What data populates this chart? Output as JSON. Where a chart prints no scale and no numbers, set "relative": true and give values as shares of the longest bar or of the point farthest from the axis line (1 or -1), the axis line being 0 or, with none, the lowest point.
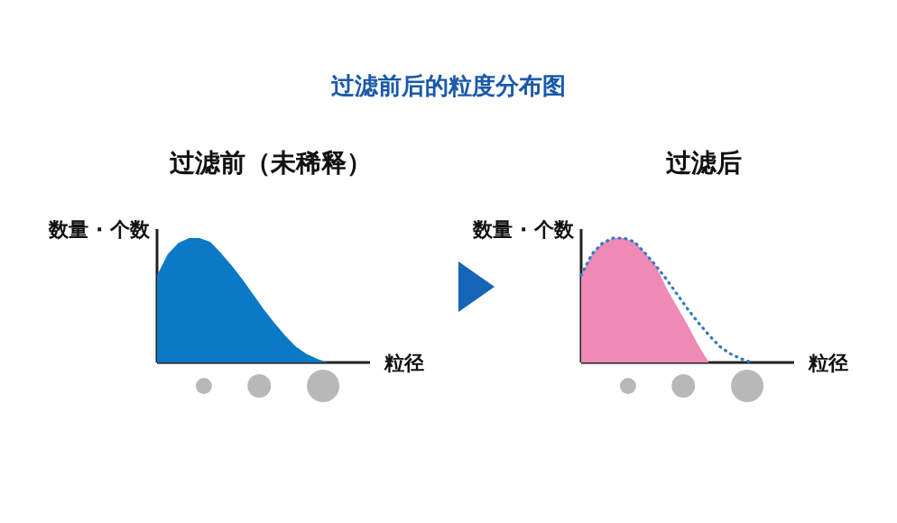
{
  "chart_data": [
    {
      "type": "area",
      "relative": true,
      "title": "过滤前（未稀释）",
      "xlabel": "粒径",
      "ylabel": "数量 · 个数",
      "annotations": [
        "过滤前后的粒度分布图"
      ],
      "categories": [
        null,
        null,
        null,
        null,
        null,
        null,
        null,
        null,
        null,
        null,
        null,
        null,
        null,
        null,
        null,
        null,
        null,
        null,
        null,
        null,
        null
      ],
      "series": [
        {
          "color": "#0a7ac6",
          "values": [
            0.7,
            0.87,
            0.96,
            1,
            1,
            0.97,
            0.88,
            0.78,
            0.67,
            0.55,
            0.43,
            0.32,
            0.22,
            0.13,
            0.07,
            0.03,
            0,
            0,
            0,
            0,
            0
          ]
        }
      ]
    },
    {
      "type": "area",
      "relative": true,
      "title": "过滤后",
      "xlabel": "粒径",
      "ylabel": "数量 · 个数",
      "categories": [
        null,
        null,
        null,
        null,
        null,
        null,
        null,
        null,
        null,
        null,
        null,
        null,
        null,
        null,
        null,
        null,
        null,
        null,
        null,
        null,
        null
      ],
      "series": [
        {
          "color": "#ee8ab4",
          "values": [
            0.7,
            0.87,
            0.96,
            1,
            1,
            0.97,
            0.88,
            0.78,
            0.6,
            0.45,
            0.3,
            0.14,
            0,
            0,
            0,
            0,
            0,
            0,
            0,
            0,
            0
          ]
        },
        {
          "type": "line",
          "line_style": "dotted",
          "color": "#2b7cc4",
          "values": [
            0.7,
            0.87,
            0.96,
            1,
            1,
            0.97,
            0.88,
            0.78,
            0.67,
            0.55,
            0.43,
            0.32,
            0.22,
            0.13,
            0.07,
            0.03,
            0,
            null,
            null,
            null,
            null
          ]
        }
      ]
    }
  ]
}
